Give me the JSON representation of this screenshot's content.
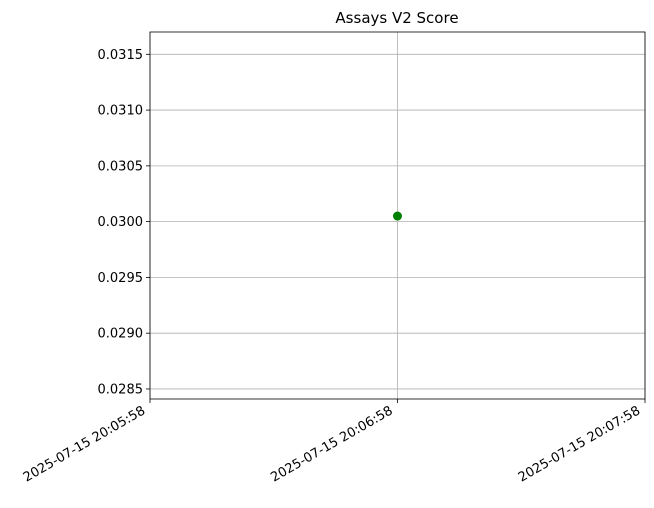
{
  "chart_data": {
    "type": "scatter",
    "title": "Assays V2 Score",
    "xlabel": "",
    "ylabel": "",
    "x_ticks": [
      "2025-07-15 20:05:58",
      "2025-07-15 20:06:58",
      "2025-07-15 20:07:58"
    ],
    "xlim": [
      "2025-07-15 20:05:58",
      "2025-07-15 20:07:58"
    ],
    "y_ticks": [
      "0.0285",
      "0.0290",
      "0.0295",
      "0.0300",
      "0.0305",
      "0.0310",
      "0.0315"
    ],
    "ylim": [
      0.02841,
      0.0317
    ],
    "grid": true,
    "series": [
      {
        "color": "#008000",
        "points": [
          {
            "x": "2025-07-15 20:06:58",
            "y": 0.03005
          }
        ]
      }
    ]
  }
}
